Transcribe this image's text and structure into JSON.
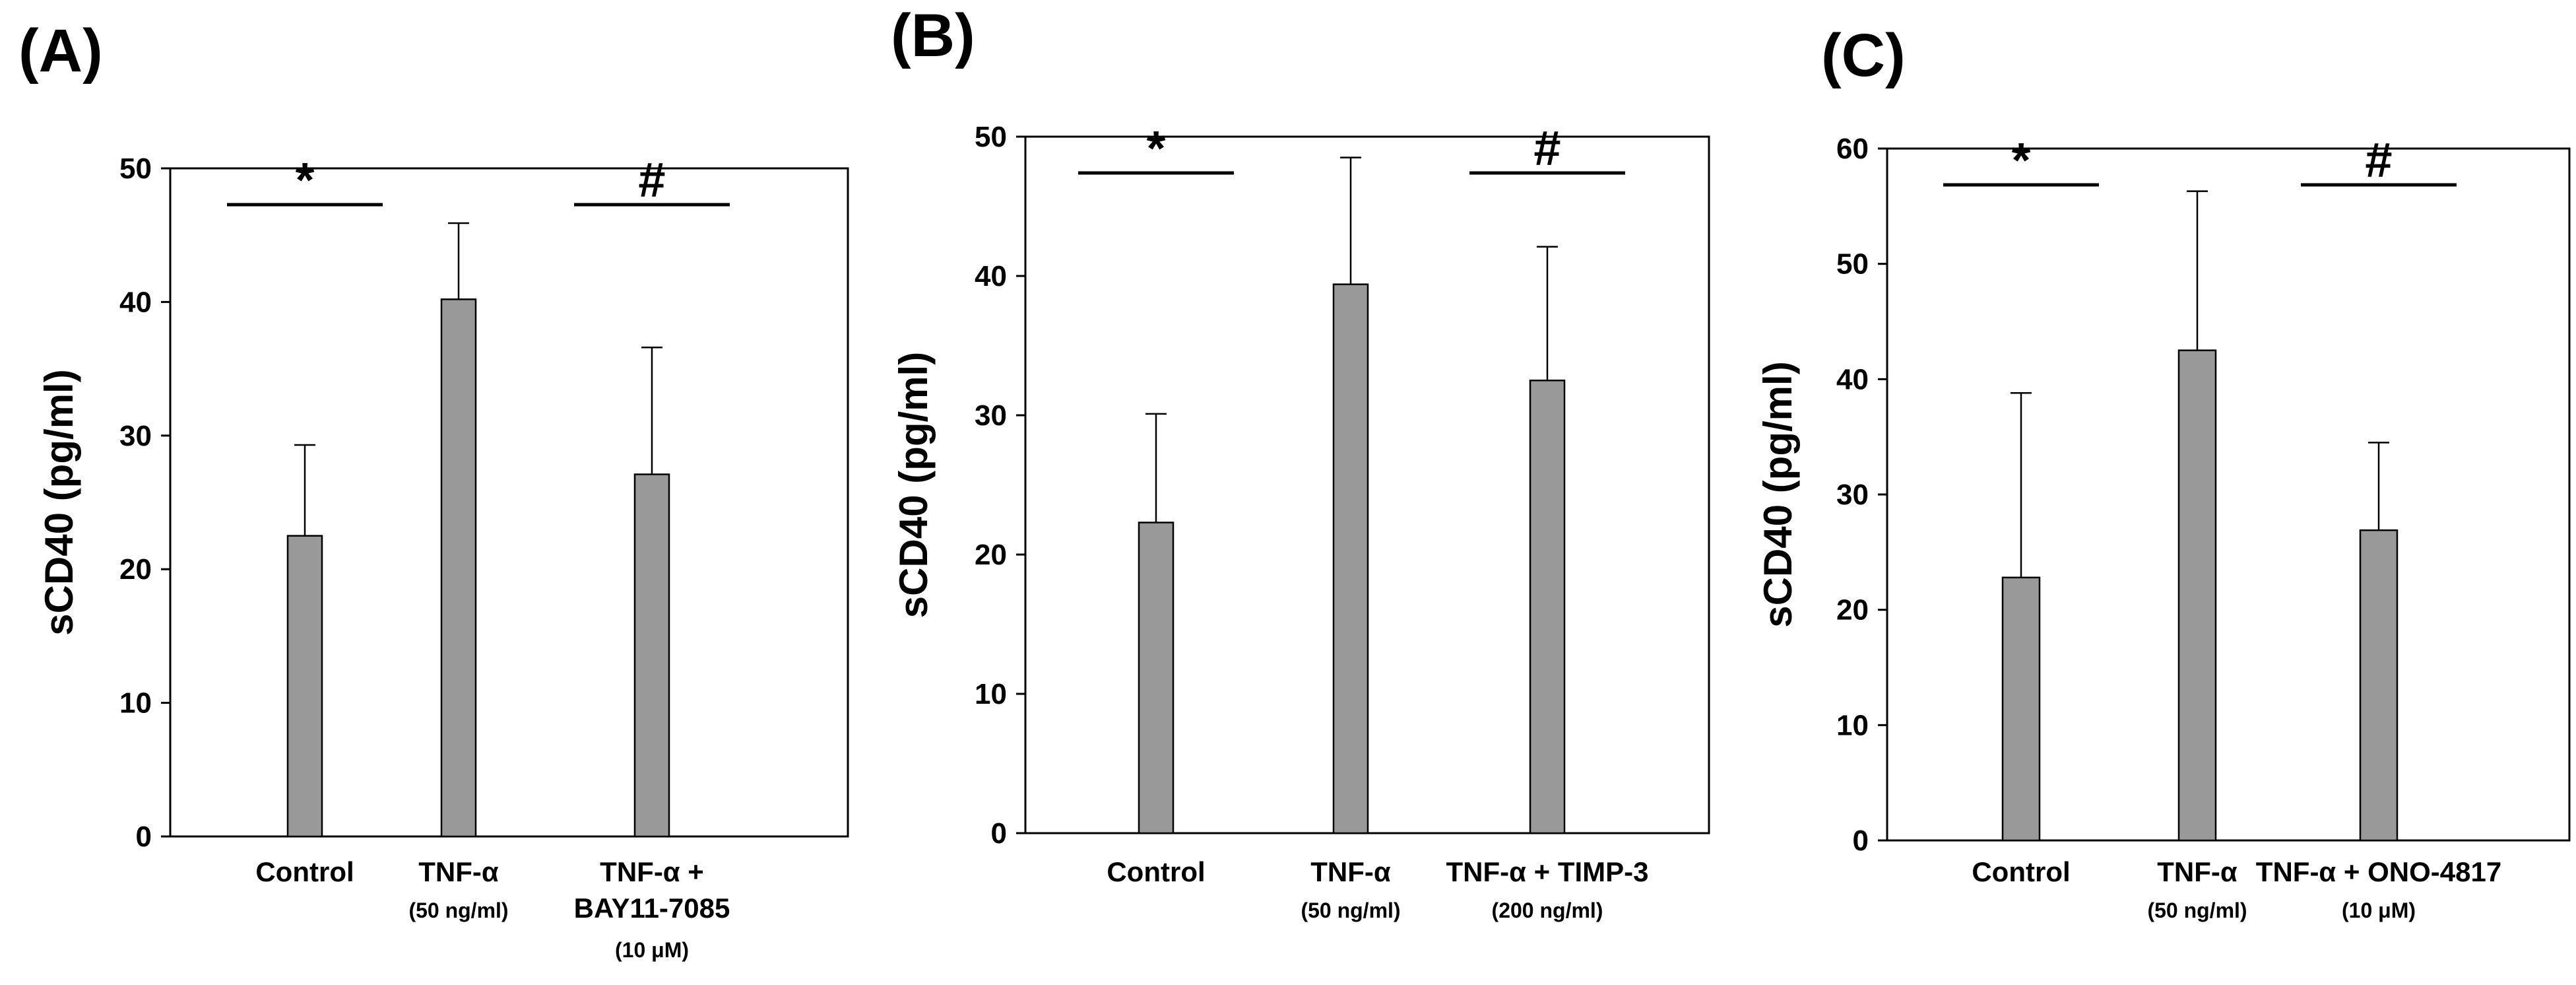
{
  "figure": {
    "y_label_default": "sCD40 (pg/ml)"
  },
  "chart_data": [
    {
      "panel_label": "(A)",
      "type": "bar",
      "ylabel": "sCD40 (pg/ml)",
      "ylim": [
        0,
        50
      ],
      "yticks": [
        0,
        10,
        20,
        30,
        40,
        50
      ],
      "bar_color": "#999999",
      "categories": [
        {
          "label": "Control",
          "sub": []
        },
        {
          "label": "TNF-α",
          "sub": [
            "(50 ng/ml)"
          ]
        },
        {
          "label": "TNF-α +",
          "sub": [
            "BAY11-7085",
            "(10 μM)"
          ]
        }
      ],
      "values": [
        22.5,
        40.2,
        27.1
      ],
      "errors": [
        6.8,
        5.7,
        9.5
      ],
      "annotations": [
        {
          "symbol": "*",
          "category_index": 0
        },
        {
          "symbol": "#",
          "category_index": 2
        }
      ]
    },
    {
      "panel_label": "(B)",
      "type": "bar",
      "ylabel": "sCD40 (pg/ml)",
      "ylim": [
        0,
        50
      ],
      "yticks": [
        0,
        10,
        20,
        30,
        40,
        50
      ],
      "bar_color": "#999999",
      "categories": [
        {
          "label": "Control",
          "sub": []
        },
        {
          "label": "TNF-α",
          "sub": [
            "(50 ng/ml)"
          ]
        },
        {
          "label": "TNF-α + TIMP-3",
          "sub": [
            "(200 ng/ml)"
          ]
        }
      ],
      "values": [
        22.3,
        39.4,
        32.5
      ],
      "errors": [
        7.8,
        9.1,
        9.6
      ],
      "annotations": [
        {
          "symbol": "*",
          "category_index": 0
        },
        {
          "symbol": "#",
          "category_index": 2
        }
      ]
    },
    {
      "panel_label": "(C)",
      "type": "bar",
      "ylabel": "sCD40 (pg/ml)",
      "ylim": [
        0,
        60
      ],
      "yticks": [
        0,
        10,
        20,
        30,
        40,
        50,
        60
      ],
      "bar_color": "#999999",
      "categories": [
        {
          "label": "Control",
          "sub": []
        },
        {
          "label": "TNF-α",
          "sub": [
            "(50 ng/ml)"
          ]
        },
        {
          "label": "TNF-α + ONO-4817",
          "sub": [
            "(10 μM)"
          ]
        }
      ],
      "values": [
        22.8,
        42.5,
        26.9
      ],
      "errors": [
        16.0,
        13.8,
        7.6
      ],
      "annotations": [
        {
          "symbol": "*",
          "category_index": 0
        },
        {
          "symbol": "#",
          "category_index": 2
        }
      ]
    }
  ]
}
